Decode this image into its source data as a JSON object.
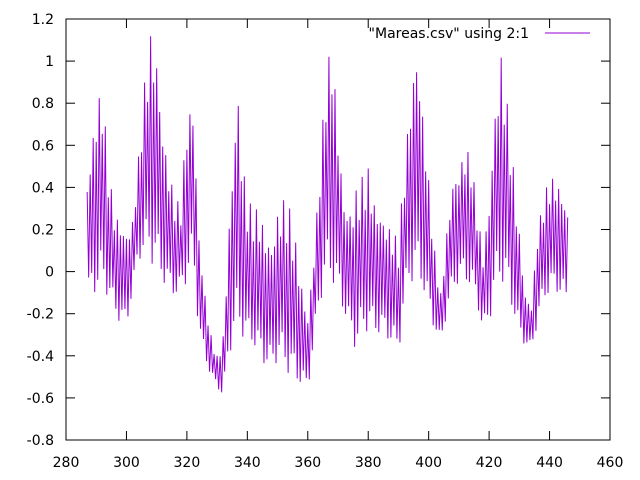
{
  "chart_data": {
    "type": "line",
    "title": "",
    "xlabel": "",
    "ylabel": "",
    "xlim": [
      280,
      460
    ],
    "ylim": [
      -0.8,
      1.2
    ],
    "x_ticks": [
      280,
      300,
      320,
      340,
      360,
      380,
      400,
      420,
      440,
      460
    ],
    "y_ticks": [
      -0.8,
      -0.6,
      -0.4,
      -0.2,
      0,
      0.2,
      0.4,
      0.6,
      0.8,
      1,
      1.2
    ],
    "x_tick_labels": [
      "280",
      "300",
      "320",
      "340",
      "360",
      "380",
      "400",
      "420",
      "440",
      "460"
    ],
    "y_tick_labels": [
      "-0.8",
      "-0.6",
      "-0.4",
      "-0.2",
      "0",
      "0.2",
      "0.4",
      "0.6",
      "0.8",
      "1",
      "1.2"
    ],
    "grid": false,
    "legend_position": "top-right",
    "series": [
      {
        "name": "\"Mareas.csv\" using 2:1",
        "color": "#9400d3",
        "samples_per_unit": 2,
        "high_envelope": [
          [
            287,
            0.45
          ],
          [
            290,
            0.8
          ],
          [
            292,
            0.88
          ],
          [
            294,
            0.5
          ],
          [
            296,
            0.3
          ],
          [
            298,
            0.25
          ],
          [
            300,
            0.2
          ],
          [
            302,
            0.25
          ],
          [
            304,
            0.55
          ],
          [
            306,
            0.9
          ],
          [
            308,
            1.15
          ],
          [
            310,
            1.05
          ],
          [
            312,
            0.7
          ],
          [
            314,
            0.5
          ],
          [
            316,
            0.35
          ],
          [
            318,
            0.32
          ],
          [
            320,
            0.75
          ],
          [
            322,
            0.82
          ],
          [
            324,
            0.2
          ],
          [
            326,
            -0.1
          ],
          [
            328,
            -0.3
          ],
          [
            330,
            -0.4
          ],
          [
            332,
            -0.3
          ],
          [
            334,
            0.25
          ],
          [
            336,
            0.75
          ],
          [
            337,
            0.88
          ],
          [
            338,
            0.6
          ],
          [
            340,
            0.35
          ],
          [
            342,
            0.3
          ],
          [
            344,
            0.3
          ],
          [
            346,
            0.2
          ],
          [
            348,
            0.15
          ],
          [
            350,
            0.3
          ],
          [
            352,
            0.35
          ],
          [
            354,
            0.3
          ],
          [
            356,
            0.15
          ],
          [
            358,
            -0.05
          ],
          [
            360,
            -0.2
          ],
          [
            362,
            0.1
          ],
          [
            364,
            0.5
          ],
          [
            366,
            0.95
          ],
          [
            368,
            1.1
          ],
          [
            370,
            0.7
          ],
          [
            372,
            0.35
          ],
          [
            374,
            0.3
          ],
          [
            376,
            0.4
          ],
          [
            378,
            0.45
          ],
          [
            380,
            0.5
          ],
          [
            382,
            0.35
          ],
          [
            384,
            0.3
          ],
          [
            386,
            0.25
          ],
          [
            388,
            0.2
          ],
          [
            390,
            0.15
          ],
          [
            392,
            0.5
          ],
          [
            394,
            0.85
          ],
          [
            396,
            1.1
          ],
          [
            398,
            0.8
          ],
          [
            400,
            0.45
          ],
          [
            402,
            0.1
          ],
          [
            404,
            -0.1
          ],
          [
            406,
            0.2
          ],
          [
            408,
            0.45
          ],
          [
            410,
            0.5
          ],
          [
            412,
            0.6
          ],
          [
            414,
            0.55
          ],
          [
            416,
            0.3
          ],
          [
            418,
            0.1
          ],
          [
            420,
            0.35
          ],
          [
            422,
            0.8
          ],
          [
            424,
            1.05
          ],
          [
            426,
            0.8
          ],
          [
            428,
            0.5
          ],
          [
            430,
            0.2
          ],
          [
            432,
            -0.1
          ],
          [
            434,
            -0.15
          ],
          [
            436,
            0.2
          ],
          [
            438,
            0.35
          ],
          [
            440,
            0.45
          ],
          [
            442,
            0.45
          ],
          [
            444,
            0.4
          ],
          [
            446,
            0.3
          ]
        ],
        "low_envelope": [
          [
            287,
            -0.15
          ],
          [
            290,
            -0.1
          ],
          [
            292,
            -0.08
          ],
          [
            294,
            -0.12
          ],
          [
            296,
            -0.2
          ],
          [
            298,
            -0.25
          ],
          [
            300,
            -0.27
          ],
          [
            302,
            -0.1
          ],
          [
            304,
            0.05
          ],
          [
            306,
            0.08
          ],
          [
            308,
            0.05
          ],
          [
            310,
            0.0
          ],
          [
            312,
            -0.05
          ],
          [
            314,
            -0.1
          ],
          [
            316,
            -0.12
          ],
          [
            318,
            -0.1
          ],
          [
            320,
            -0.05
          ],
          [
            322,
            0.05
          ],
          [
            324,
            -0.3
          ],
          [
            326,
            -0.42
          ],
          [
            328,
            -0.5
          ],
          [
            330,
            -0.55
          ],
          [
            332,
            -0.6
          ],
          [
            334,
            -0.4
          ],
          [
            336,
            -0.3
          ],
          [
            338,
            -0.3
          ],
          [
            340,
            -0.35
          ],
          [
            342,
            -0.35
          ],
          [
            344,
            -0.42
          ],
          [
            346,
            -0.45
          ],
          [
            348,
            -0.48
          ],
          [
            350,
            -0.42
          ],
          [
            352,
            -0.45
          ],
          [
            354,
            -0.5
          ],
          [
            356,
            -0.52
          ],
          [
            358,
            -0.55
          ],
          [
            360,
            -0.57
          ],
          [
            362,
            -0.35
          ],
          [
            364,
            -0.15
          ],
          [
            366,
            -0.05
          ],
          [
            368,
            -0.05
          ],
          [
            370,
            -0.12
          ],
          [
            372,
            -0.2
          ],
          [
            374,
            -0.3
          ],
          [
            376,
            -0.38
          ],
          [
            378,
            -0.3
          ],
          [
            380,
            -0.28
          ],
          [
            382,
            -0.3
          ],
          [
            384,
            -0.3
          ],
          [
            386,
            -0.32
          ],
          [
            388,
            -0.35
          ],
          [
            390,
            -0.4
          ],
          [
            392,
            -0.15
          ],
          [
            394,
            -0.05
          ],
          [
            396,
            -0.05
          ],
          [
            398,
            -0.08
          ],
          [
            400,
            -0.2
          ],
          [
            402,
            -0.28
          ],
          [
            404,
            -0.35
          ],
          [
            406,
            -0.2
          ],
          [
            408,
            -0.1
          ],
          [
            410,
            -0.05
          ],
          [
            412,
            -0.05
          ],
          [
            414,
            -0.08
          ],
          [
            416,
            -0.15
          ],
          [
            418,
            -0.3
          ],
          [
            420,
            -0.25
          ],
          [
            422,
            -0.1
          ],
          [
            424,
            -0.05
          ],
          [
            426,
            -0.1
          ],
          [
            428,
            -0.2
          ],
          [
            430,
            -0.32
          ],
          [
            432,
            -0.35
          ],
          [
            434,
            -0.38
          ],
          [
            436,
            -0.25
          ],
          [
            438,
            -0.15
          ],
          [
            440,
            -0.1
          ],
          [
            442,
            -0.1
          ],
          [
            444,
            -0.12
          ],
          [
            446,
            -0.17
          ]
        ]
      }
    ]
  }
}
